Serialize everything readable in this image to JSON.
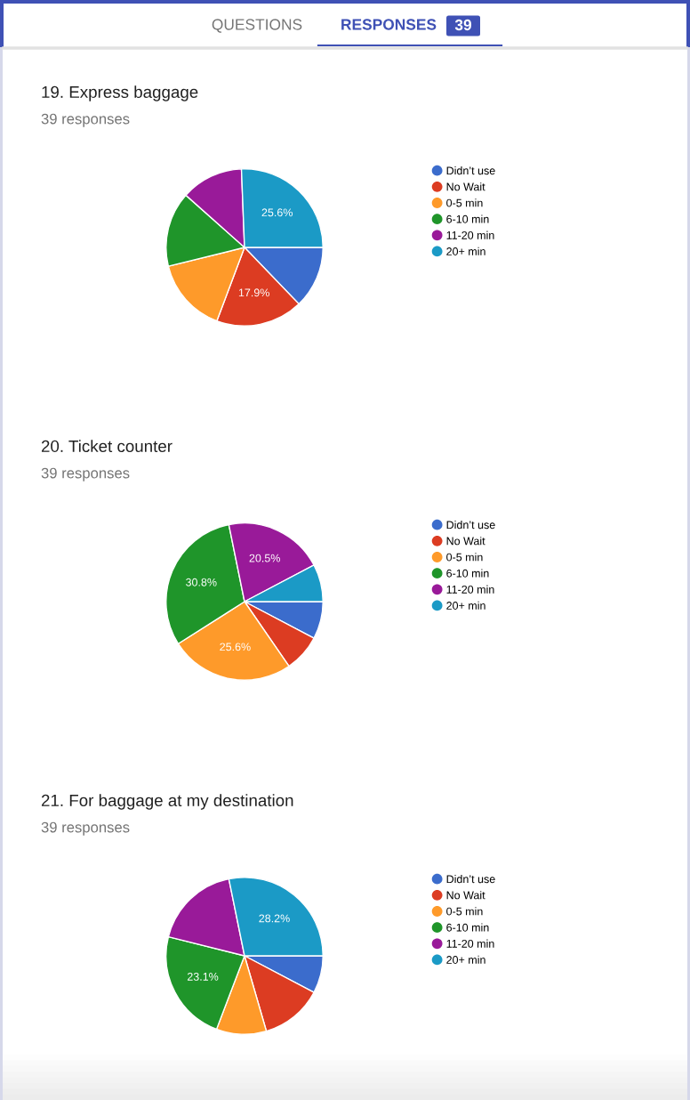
{
  "chart_data": [
    {
      "type": "other",
      "annotations": [
        "QUESTIONS",
        "RESPONSES",
        "39"
      ]
    },
    {
      "type": "pie",
      "title": "19. Express baggage",
      "subtitle": "39 responses",
      "categories": [
        "Didn’t use",
        "No Wait",
        "0-5 min",
        "6-10 min",
        "11-20 min",
        "20+ min"
      ],
      "values": [
        12.8,
        17.9,
        15.4,
        15.4,
        12.8,
        25.6
      ],
      "colors": [
        "#3b6ccc",
        "#dc3c22",
        "#fe9a2a",
        "#1f952a",
        "#991a99",
        "#1b9ac6"
      ],
      "value_labels": [
        null,
        "17.9%",
        null,
        null,
        null,
        "25.6%"
      ],
      "legend": "right"
    },
    {
      "type": "pie",
      "title": "20. Ticket counter",
      "subtitle": "39 responses",
      "categories": [
        "Didn’t use",
        "No Wait",
        "0-5 min",
        "6-10 min",
        "11-20 min",
        "20+ min"
      ],
      "values": [
        7.7,
        7.7,
        25.6,
        30.8,
        20.5,
        7.7
      ],
      "colors": [
        "#3b6ccc",
        "#dc3c22",
        "#fe9a2a",
        "#1f952a",
        "#991a99",
        "#1b9ac6"
      ],
      "value_labels": [
        null,
        null,
        "25.6%",
        "30.8%",
        "20.5%",
        null
      ],
      "legend": "right"
    },
    {
      "type": "pie",
      "title": "21. For baggage at my destination",
      "subtitle": "39 responses",
      "categories": [
        "Didn’t use",
        "No Wait",
        "0-5 min",
        "6-10 min",
        "11-20 min",
        "20+ min"
      ],
      "values": [
        7.7,
        12.8,
        10.3,
        23.1,
        17.9,
        28.2
      ],
      "colors": [
        "#3b6ccc",
        "#dc3c22",
        "#fe9a2a",
        "#1f952a",
        "#991a99",
        "#1b9ac6"
      ],
      "value_labels": [
        null,
        null,
        null,
        "23.1%",
        null,
        "28.2%"
      ],
      "legend": "right"
    }
  ]
}
